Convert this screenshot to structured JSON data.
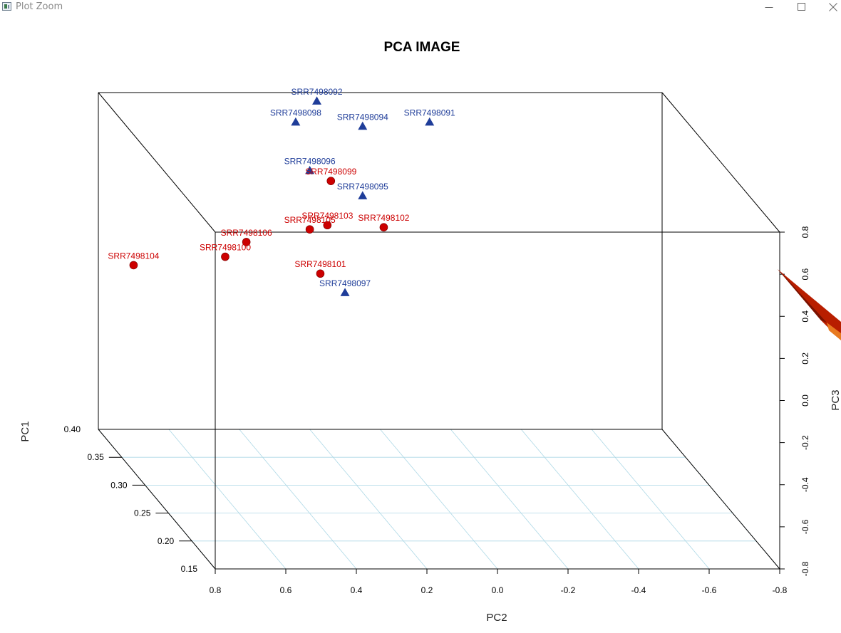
{
  "window": {
    "title": "Plot Zoom"
  },
  "chart_data": {
    "type": "scatter3d",
    "title": "PCA IMAGE",
    "xlabel": "PC2",
    "ylabel": "PC1",
    "zlabel": "PC3",
    "xlim": [
      0.8,
      -0.8
    ],
    "ylim": [
      0.15,
      0.4
    ],
    "zlim": [
      -0.8,
      0.8
    ],
    "x_ticks": [
      "0.8",
      "0.6",
      "0.4",
      "0.2",
      "0.0",
      "-0.2",
      "-0.4",
      "-0.6",
      "-0.8"
    ],
    "y_ticks": [
      "0.15",
      "0.20",
      "0.25",
      "0.30",
      "0.35",
      "0.40"
    ],
    "z_ticks": [
      "0.8",
      "0.6",
      "0.4",
      "0.2",
      "0.0",
      "-0.2",
      "-0.4",
      "-0.6",
      "-0.8"
    ],
    "grid": true,
    "series": [
      {
        "color": "#1f3d99",
        "marker": "triangle",
        "points": [
          {
            "label": "SRR7498092",
            "pc2": 0.18,
            "pc1": 0.4,
            "pc3": 0.76
          },
          {
            "label": "SRR7498098",
            "pc2": 0.24,
            "pc1": 0.4,
            "pc3": 0.66
          },
          {
            "label": "SRR7498094",
            "pc2": 0.05,
            "pc1": 0.4,
            "pc3": 0.64
          },
          {
            "label": "SRR7498091",
            "pc2": -0.14,
            "pc1": 0.4,
            "pc3": 0.66
          },
          {
            "label": "SRR7498096",
            "pc2": 0.2,
            "pc1": 0.4,
            "pc3": 0.43
          },
          {
            "label": "SRR7498095",
            "pc2": 0.05,
            "pc1": 0.4,
            "pc3": 0.31
          },
          {
            "label": "SRR7498097",
            "pc2": 0.1,
            "pc1": 0.4,
            "pc3": -0.15
          }
        ]
      },
      {
        "color": "#cc0000",
        "marker": "circle",
        "points": [
          {
            "label": "SRR7498099",
            "pc2": 0.14,
            "pc1": 0.4,
            "pc3": 0.38
          },
          {
            "label": "SRR7498103",
            "pc2": 0.15,
            "pc1": 0.4,
            "pc3": 0.17
          },
          {
            "label": "SRR7498105",
            "pc2": 0.2,
            "pc1": 0.4,
            "pc3": 0.15
          },
          {
            "label": "SRR7498102",
            "pc2": -0.01,
            "pc1": 0.4,
            "pc3": 0.16
          },
          {
            "label": "SRR7498106",
            "pc2": 0.38,
            "pc1": 0.4,
            "pc3": 0.09
          },
          {
            "label": "SRR7498100",
            "pc2": 0.44,
            "pc1": 0.4,
            "pc3": 0.02
          },
          {
            "label": "SRR7498104",
            "pc2": 0.7,
            "pc1": 0.4,
            "pc3": -0.02
          },
          {
            "label": "SRR7498101",
            "pc2": 0.17,
            "pc1": 0.4,
            "pc3": -0.06
          }
        ]
      }
    ]
  }
}
